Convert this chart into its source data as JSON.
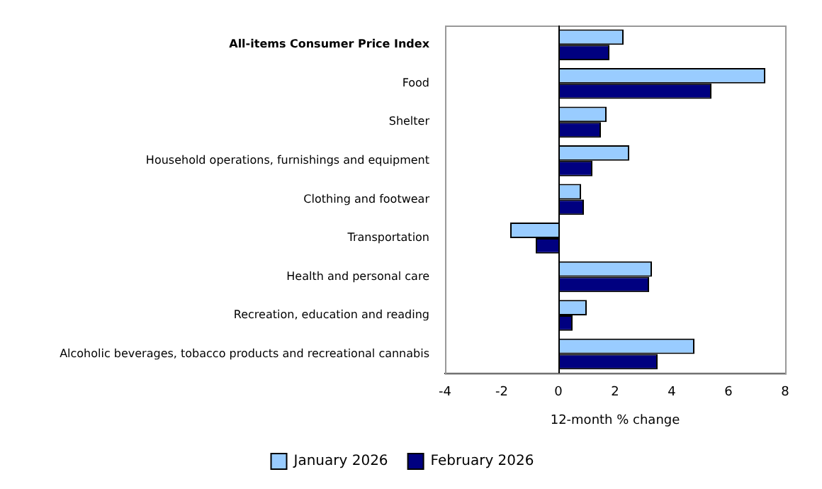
{
  "chart_data": {
    "type": "bar",
    "orientation": "horizontal",
    "xlabel": "12-month % change",
    "categories": [
      "All-items Consumer Price Index",
      "Food",
      "Shelter",
      "Household operations, furnishings and equipment",
      "Clothing and footwear",
      "Transportation",
      "Health and personal care",
      "Recreation, education and reading",
      "Alcoholic beverages, tobacco products and recreational cannabis"
    ],
    "series": [
      {
        "name": "January 2026",
        "color": "#99ccff",
        "values": [
          2.3,
          7.3,
          1.7,
          2.5,
          0.8,
          -1.7,
          3.3,
          1.0,
          4.8
        ]
      },
      {
        "name": "February 2026",
        "color": "#000080",
        "values": [
          1.8,
          5.4,
          1.5,
          1.2,
          0.9,
          -0.8,
          3.2,
          0.5,
          3.5
        ]
      }
    ],
    "xlim": [
      -4,
      8
    ],
    "xticks": [
      -4,
      -2,
      0,
      2,
      4,
      6,
      8
    ],
    "ref_lines": [
      {
        "axis": "x",
        "value": 0
      }
    ],
    "grid": false,
    "legend": "bottom"
  }
}
